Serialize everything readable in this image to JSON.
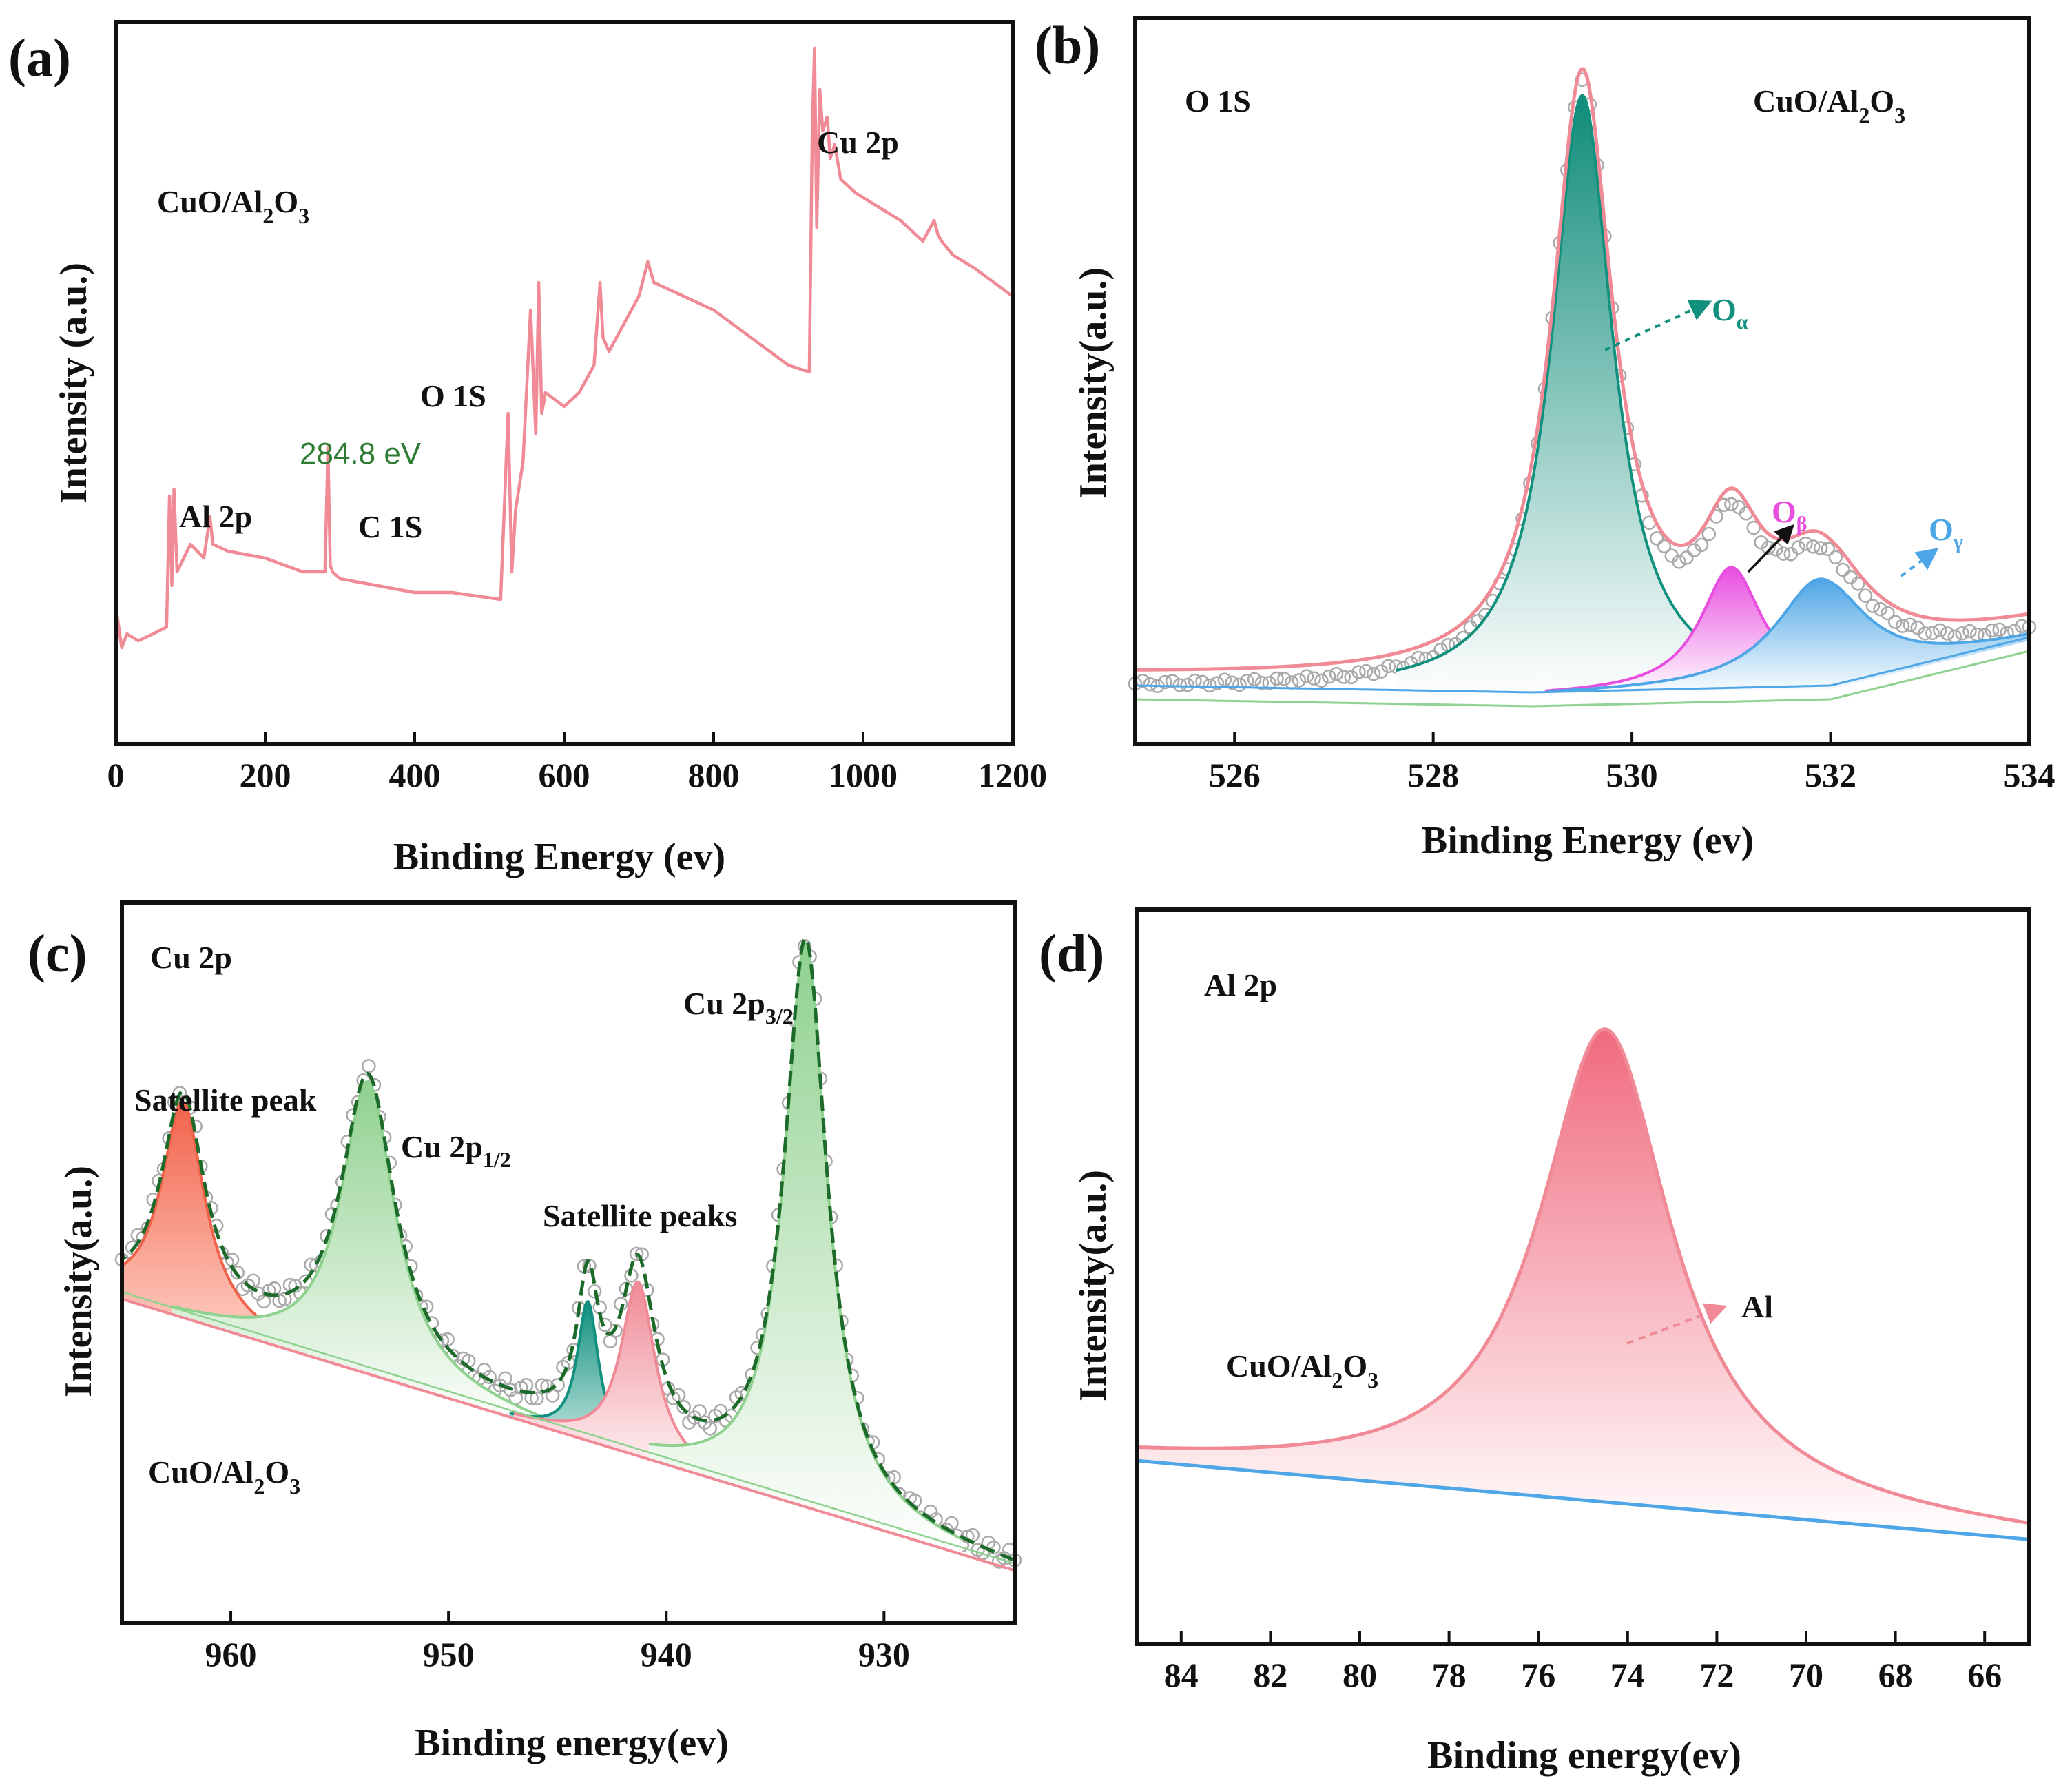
{
  "colors": {
    "pink": "#f08a96",
    "teal": "#11907e",
    "magenta": "#e84ee0",
    "blue": "#4ea6e6",
    "lightgreen": "#8fd18f",
    "darkgreen": "#1d6b2a",
    "salmon": "#f2624a",
    "gray": "#a9a9a9",
    "annot_green": "#2e7d32"
  },
  "chart_data": [
    {
      "panel": "(a)",
      "type": "line",
      "title": "",
      "xlabel": "Binding Energy (ev)",
      "ylabel": "Intensity (a.u.)",
      "xlim": [
        0,
        1200
      ],
      "ylim": [
        0,
        1
      ],
      "xticks": [
        "0",
        "200",
        "400",
        "600",
        "800",
        "1000",
        "1200"
      ],
      "sample_label": "CuO/Al₂O₃",
      "annotations": {
        "al2p": "Al 2p",
        "c1s": "C 1S",
        "c1s_ref": "284.8 eV",
        "o1s": "O 1S",
        "cu2p": "Cu 2p"
      },
      "series": [
        {
          "name": "survey",
          "color": "#f08a96",
          "x": [
            0,
            8,
            15,
            30,
            50,
            68,
            72,
            75,
            78,
            82,
            100,
            118,
            122,
            126,
            130,
            150,
            200,
            250,
            280,
            284,
            287,
            290,
            300,
            350,
            400,
            450,
            515,
            525,
            530,
            535,
            545,
            555,
            562,
            566,
            570,
            575,
            600,
            620,
            640,
            648,
            652,
            660,
            680,
            700,
            712,
            720,
            740,
            800,
            850,
            900,
            928,
            932,
            935,
            938,
            942,
            946,
            952,
            956,
            962,
            970,
            990,
            1020,
            1050,
            1080,
            1095,
            1100,
            1105,
            1120,
            1150,
            1200
          ],
          "y": [
            0.17,
            0.11,
            0.13,
            0.12,
            0.13,
            0.14,
            0.33,
            0.2,
            0.34,
            0.22,
            0.26,
            0.24,
            0.27,
            0.3,
            0.26,
            0.25,
            0.24,
            0.22,
            0.22,
            0.4,
            0.23,
            0.22,
            0.21,
            0.2,
            0.19,
            0.19,
            0.18,
            0.45,
            0.22,
            0.31,
            0.38,
            0.6,
            0.42,
            0.64,
            0.45,
            0.48,
            0.46,
            0.48,
            0.52,
            0.64,
            0.56,
            0.54,
            0.58,
            0.62,
            0.67,
            0.64,
            0.63,
            0.6,
            0.56,
            0.52,
            0.51,
            0.86,
            0.98,
            0.72,
            0.92,
            0.86,
            0.88,
            0.82,
            0.84,
            0.79,
            0.77,
            0.75,
            0.73,
            0.7,
            0.73,
            0.71,
            0.7,
            0.68,
            0.66,
            0.62
          ]
        }
      ]
    },
    {
      "panel": "(b)",
      "type": "line",
      "title": "O 1S",
      "xlabel": "Binding Energy (ev)",
      "ylabel": "Intensity(a.u.)",
      "xlim": [
        525,
        534
      ],
      "ylim": [
        0,
        1
      ],
      "xticks": [
        "526",
        "528",
        "530",
        "532",
        "534"
      ],
      "sample_label": "CuO/Al₂O₃",
      "baseline": {
        "x": [
          525,
          529,
          532,
          534
        ],
        "y": [
          0.06,
          0.05,
          0.06,
          0.13
        ]
      },
      "components": [
        {
          "name": "Oα",
          "center": 529.5,
          "height": 0.87,
          "fwhm": 0.75,
          "color": "#11907e"
        },
        {
          "name": "Oβ",
          "center": 531.0,
          "height": 0.18,
          "fwhm": 0.75,
          "color": "#e84ee0"
        },
        {
          "name": "Oγ",
          "center": 531.9,
          "height": 0.16,
          "fwhm": 1.1,
          "color": "#4ea6e6"
        }
      ],
      "series": [
        {
          "name": "raw data",
          "color": "#a9a9a9",
          "style": "open circles",
          "x": [
            525,
            534
          ],
          "y": [
            0.06,
            0.13
          ]
        },
        {
          "name": "envelope",
          "color": "#f08a96"
        }
      ]
    },
    {
      "panel": "(c)",
      "type": "line",
      "title": "Cu 2p",
      "xlabel": "Binding energy(ev)",
      "ylabel": "Intensity(a.u.)",
      "xlim": [
        965,
        924
      ],
      "ylim": [
        0,
        1
      ],
      "xticks": [
        "960",
        "950",
        "940",
        "930"
      ],
      "sample_label": "CuO/Al₂O₃",
      "baseline": {
        "x": [
          965,
          924
        ],
        "y": [
          0.45,
          0.06
        ]
      },
      "components": [
        {
          "name": "Satellite peak",
          "center": 962.2,
          "height": 0.31,
          "fwhm": 2.4,
          "color": "#f2624a"
        },
        {
          "name": "Cu 2p1/2",
          "center": 953.7,
          "height": 0.42,
          "fwhm": 3.0,
          "color": "#8fd18f"
        },
        {
          "name": "Satellite peaks (1)",
          "center": 943.6,
          "height": 0.2,
          "fwhm": 1.2,
          "color": "#11907e"
        },
        {
          "name": "Satellite peaks (2)",
          "center": 941.3,
          "height": 0.25,
          "fwhm": 1.9,
          "color": "#f08a96"
        },
        {
          "name": "Cu 2p3/2",
          "center": 933.6,
          "height": 0.81,
          "fwhm": 2.4,
          "color": "#8fd18f"
        }
      ],
      "series": [
        {
          "name": "raw data",
          "color": "#a9a9a9",
          "style": "open circles"
        },
        {
          "name": "envelope",
          "color": "#1d6b2a"
        }
      ]
    },
    {
      "panel": "(d)",
      "type": "line",
      "title": "Al 2p",
      "xlabel": "Binding energy(ev)",
      "ylabel": "Intensity(a.u.)",
      "xlim": [
        85,
        65
      ],
      "ylim": [
        0,
        1
      ],
      "xticks": [
        "84",
        "82",
        "80",
        "78",
        "76",
        "74",
        "72",
        "70",
        "68",
        "66"
      ],
      "sample_label": "CuO/Al₂O₃",
      "baseline": {
        "x": [
          85,
          65
        ],
        "y": [
          0.25,
          0.14
        ]
      },
      "components": [
        {
          "name": "Al",
          "center": 74.5,
          "height": 0.66,
          "fwhm": 3.6,
          "color": "#f08a96"
        }
      ],
      "series": [
        {
          "name": "fit",
          "color": "#f08a96"
        },
        {
          "name": "baseline",
          "color": "#4ea6e6"
        }
      ]
    }
  ],
  "labels": {
    "a": {
      "panel": "(a)",
      "ylabel": "Intensity (a.u.)",
      "xlabel": "Binding Energy (ev)",
      "sample": "CuO/Al",
      "al2p": "Al 2p",
      "c1s": "C 1S",
      "ref": "284.8 eV",
      "o1s": "O 1S",
      "cu2p": "Cu 2p"
    },
    "b": {
      "panel": "(b)",
      "ylabel": "Intensity(a.u.)",
      "xlabel": "Binding Energy (ev)",
      "title": "O 1S",
      "sample": "CuO/Al",
      "oa": "O",
      "oa_sub": "α",
      "ob": "O",
      "ob_sub": "β",
      "og": "O",
      "og_sub": "γ"
    },
    "c": {
      "panel": "(c)",
      "ylabel": "Intensity(a.u.)",
      "xlabel": "Binding energy(ev)",
      "title": "Cu 2p",
      "sample": "CuO/Al",
      "sat": "Satellite peak",
      "sats": "Satellite peaks",
      "p12": "Cu 2p",
      "p12_sub": "1/2",
      "p32": "Cu 2p",
      "p32_sub": "3/2"
    },
    "d": {
      "panel": "(d)",
      "ylabel": "Intensity(a.u.)",
      "xlabel": "Binding energy(ev)",
      "title": "Al 2p",
      "sample": "CuO/Al",
      "al": "Al"
    },
    "sub2": "2",
    "o3": "O",
    "sub3": "3"
  }
}
